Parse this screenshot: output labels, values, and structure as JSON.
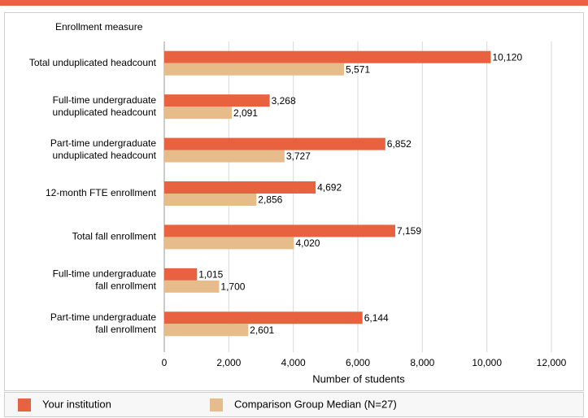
{
  "chart_data": {
    "type": "bar",
    "orientation": "horizontal",
    "y_axis_title": "Enrollment measure",
    "x_axis_title": "Number of students",
    "categories": [
      [
        "Total unduplicated headcount"
      ],
      [
        "Full-time undergraduate",
        "unduplicated headcount"
      ],
      [
        "Part-time undergraduate",
        "unduplicated headcount"
      ],
      [
        "12-month FTE enrollment"
      ],
      [
        "Total fall enrollment"
      ],
      [
        "Full-time undergraduate",
        "fall enrollment"
      ],
      [
        "Part-time undergraduate",
        "fall enrollment"
      ]
    ],
    "series": [
      {
        "name": "Your institution",
        "color": "#e8623f",
        "values": [
          10120,
          3268,
          6852,
          4692,
          7159,
          1015,
          6144
        ],
        "value_labels": [
          "10,120",
          "3,268",
          "6,852",
          "4,692",
          "7,159",
          "1,015",
          "6,144"
        ]
      },
      {
        "name": "Comparison Group Median (N=27)",
        "color": "#e6bc8a",
        "values": [
          5571,
          2091,
          3727,
          2856,
          4020,
          1700,
          2601
        ],
        "value_labels": [
          "5,571",
          "2,091",
          "3,727",
          "2,856",
          "4,020",
          "1,700",
          "2,601"
        ]
      }
    ],
    "xlim": [
      0,
      12000
    ],
    "xticks": [
      0,
      {
        "value": 2000,
        "label": "2,000"
      },
      {
        "value": 4000,
        "label": "4,000"
      },
      {
        "value": 6000,
        "label": "6,000"
      },
      {
        "value": 8000,
        "label": "8,000"
      },
      {
        "value": 10000,
        "label": "10,000"
      },
      {
        "value": 12000,
        "label": "12,000"
      }
    ],
    "grid": true
  }
}
